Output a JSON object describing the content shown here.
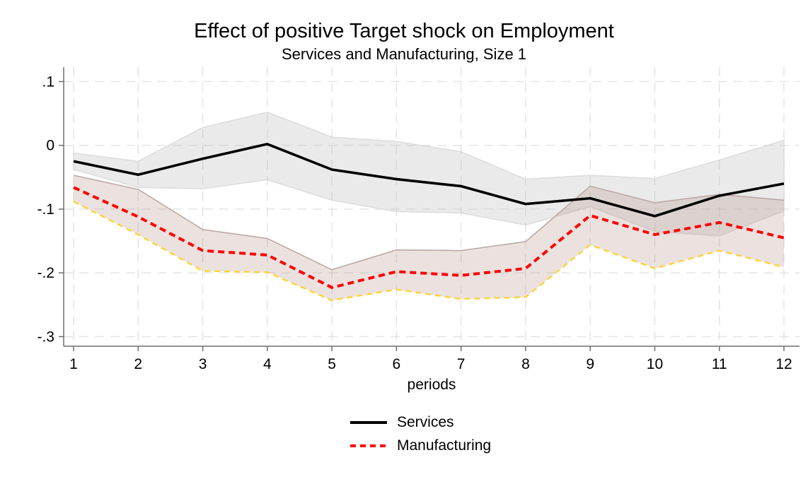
{
  "title": "Effect of positive Target shock on Employment",
  "subtitle": "Services and Manufacturing, Size 1",
  "legend": {
    "items": [
      {
        "label": "Services"
      },
      {
        "label": "Manufacturing"
      }
    ]
  },
  "chart_data": {
    "type": "line",
    "title": "Effect of positive Target shock on Employment",
    "subtitle": "Services and Manufacturing, Size 1",
    "xlabel": "periods",
    "ylabel": "",
    "background": "#ffffff",
    "grid": true,
    "grid_color": "#e2e2e2",
    "axis_color": "#6e6e6e",
    "legend_position": "below-center",
    "x": [
      1,
      2,
      3,
      4,
      5,
      6,
      7,
      8,
      9,
      10,
      11,
      12
    ],
    "x_tick_labels": [
      "1",
      "2",
      "3",
      "4",
      "5",
      "6",
      "7",
      "8",
      "9",
      "10",
      "11",
      "12"
    ],
    "y_ticks": [
      0.1,
      0,
      -0.1,
      -0.2,
      -0.3
    ],
    "y_tick_labels": [
      ".1",
      "0",
      "-.1",
      "-.2",
      "-.3"
    ],
    "xlim": [
      0.85,
      12.25
    ],
    "ylim": [
      -0.315,
      0.123
    ],
    "series": [
      {
        "name": "Services",
        "line_color": "#000000",
        "line_style": "solid",
        "values": [
          -0.025,
          -0.046,
          -0.021,
          0.002,
          -0.038,
          -0.053,
          -0.064,
          -0.092,
          -0.083,
          -0.111,
          -0.079,
          -0.06
        ],
        "ci_upper": [
          -0.012,
          -0.025,
          0.028,
          0.052,
          0.013,
          0.006,
          -0.01,
          -0.053,
          -0.047,
          -0.052,
          -0.023,
          0.008
        ],
        "ci_lower": [
          -0.038,
          -0.066,
          -0.068,
          -0.054,
          -0.086,
          -0.104,
          -0.106,
          -0.125,
          -0.096,
          -0.135,
          -0.142,
          -0.103
        ],
        "band_fill": "#bdbdbd",
        "band_fill_opacity": 0.32,
        "band_edge_color": "#dcdcdc"
      },
      {
        "name": "Manufacturing",
        "line_color": "#ff0000",
        "line_style": "dashed",
        "values": [
          -0.066,
          -0.112,
          -0.165,
          -0.172,
          -0.223,
          -0.198,
          -0.204,
          -0.193,
          -0.11,
          -0.14,
          -0.121,
          -0.145
        ],
        "ci_upper": [
          -0.047,
          -0.069,
          -0.132,
          -0.146,
          -0.195,
          -0.164,
          -0.165,
          -0.151,
          -0.064,
          -0.09,
          -0.077,
          -0.086
        ],
        "ci_lower": [
          -0.088,
          -0.14,
          -0.197,
          -0.199,
          -0.243,
          -0.226,
          -0.241,
          -0.238,
          -0.156,
          -0.193,
          -0.165,
          -0.191
        ],
        "band_fill": "#b08a7e",
        "band_fill_opacity": 0.25,
        "band_edge_top_color": "#bca9a4",
        "band_edge_bottom_color": "#ffd333"
      }
    ]
  }
}
